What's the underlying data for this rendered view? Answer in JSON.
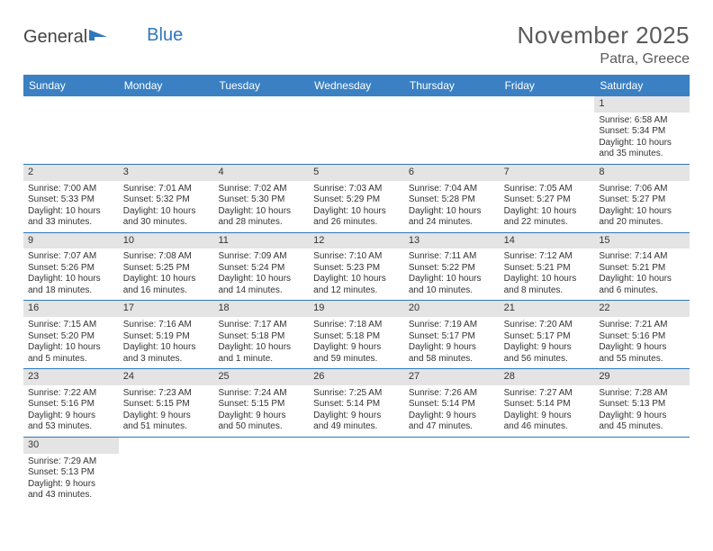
{
  "logo": {
    "text_a": "General",
    "text_b": "Blue"
  },
  "title": "November 2025",
  "location": "Patra, Greece",
  "colors": {
    "header_bg": "#3a80c3",
    "row_divider": "#2f77bb",
    "daynum_bg": "#e4e4e4",
    "text": "#333333",
    "title_text": "#5a5a5a"
  },
  "weekdays": [
    "Sunday",
    "Monday",
    "Tuesday",
    "Wednesday",
    "Thursday",
    "Friday",
    "Saturday"
  ],
  "weeks": [
    [
      null,
      null,
      null,
      null,
      null,
      null,
      {
        "n": "1",
        "sunrise": "Sunrise: 6:58 AM",
        "sunset": "Sunset: 5:34 PM",
        "day1": "Daylight: 10 hours",
        "day2": "and 35 minutes."
      }
    ],
    [
      {
        "n": "2",
        "sunrise": "Sunrise: 7:00 AM",
        "sunset": "Sunset: 5:33 PM",
        "day1": "Daylight: 10 hours",
        "day2": "and 33 minutes."
      },
      {
        "n": "3",
        "sunrise": "Sunrise: 7:01 AM",
        "sunset": "Sunset: 5:32 PM",
        "day1": "Daylight: 10 hours",
        "day2": "and 30 minutes."
      },
      {
        "n": "4",
        "sunrise": "Sunrise: 7:02 AM",
        "sunset": "Sunset: 5:30 PM",
        "day1": "Daylight: 10 hours",
        "day2": "and 28 minutes."
      },
      {
        "n": "5",
        "sunrise": "Sunrise: 7:03 AM",
        "sunset": "Sunset: 5:29 PM",
        "day1": "Daylight: 10 hours",
        "day2": "and 26 minutes."
      },
      {
        "n": "6",
        "sunrise": "Sunrise: 7:04 AM",
        "sunset": "Sunset: 5:28 PM",
        "day1": "Daylight: 10 hours",
        "day2": "and 24 minutes."
      },
      {
        "n": "7",
        "sunrise": "Sunrise: 7:05 AM",
        "sunset": "Sunset: 5:27 PM",
        "day1": "Daylight: 10 hours",
        "day2": "and 22 minutes."
      },
      {
        "n": "8",
        "sunrise": "Sunrise: 7:06 AM",
        "sunset": "Sunset: 5:27 PM",
        "day1": "Daylight: 10 hours",
        "day2": "and 20 minutes."
      }
    ],
    [
      {
        "n": "9",
        "sunrise": "Sunrise: 7:07 AM",
        "sunset": "Sunset: 5:26 PM",
        "day1": "Daylight: 10 hours",
        "day2": "and 18 minutes."
      },
      {
        "n": "10",
        "sunrise": "Sunrise: 7:08 AM",
        "sunset": "Sunset: 5:25 PM",
        "day1": "Daylight: 10 hours",
        "day2": "and 16 minutes."
      },
      {
        "n": "11",
        "sunrise": "Sunrise: 7:09 AM",
        "sunset": "Sunset: 5:24 PM",
        "day1": "Daylight: 10 hours",
        "day2": "and 14 minutes."
      },
      {
        "n": "12",
        "sunrise": "Sunrise: 7:10 AM",
        "sunset": "Sunset: 5:23 PM",
        "day1": "Daylight: 10 hours",
        "day2": "and 12 minutes."
      },
      {
        "n": "13",
        "sunrise": "Sunrise: 7:11 AM",
        "sunset": "Sunset: 5:22 PM",
        "day1": "Daylight: 10 hours",
        "day2": "and 10 minutes."
      },
      {
        "n": "14",
        "sunrise": "Sunrise: 7:12 AM",
        "sunset": "Sunset: 5:21 PM",
        "day1": "Daylight: 10 hours",
        "day2": "and 8 minutes."
      },
      {
        "n": "15",
        "sunrise": "Sunrise: 7:14 AM",
        "sunset": "Sunset: 5:21 PM",
        "day1": "Daylight: 10 hours",
        "day2": "and 6 minutes."
      }
    ],
    [
      {
        "n": "16",
        "sunrise": "Sunrise: 7:15 AM",
        "sunset": "Sunset: 5:20 PM",
        "day1": "Daylight: 10 hours",
        "day2": "and 5 minutes."
      },
      {
        "n": "17",
        "sunrise": "Sunrise: 7:16 AM",
        "sunset": "Sunset: 5:19 PM",
        "day1": "Daylight: 10 hours",
        "day2": "and 3 minutes."
      },
      {
        "n": "18",
        "sunrise": "Sunrise: 7:17 AM",
        "sunset": "Sunset: 5:18 PM",
        "day1": "Daylight: 10 hours",
        "day2": "and 1 minute."
      },
      {
        "n": "19",
        "sunrise": "Sunrise: 7:18 AM",
        "sunset": "Sunset: 5:18 PM",
        "day1": "Daylight: 9 hours",
        "day2": "and 59 minutes."
      },
      {
        "n": "20",
        "sunrise": "Sunrise: 7:19 AM",
        "sunset": "Sunset: 5:17 PM",
        "day1": "Daylight: 9 hours",
        "day2": "and 58 minutes."
      },
      {
        "n": "21",
        "sunrise": "Sunrise: 7:20 AM",
        "sunset": "Sunset: 5:17 PM",
        "day1": "Daylight: 9 hours",
        "day2": "and 56 minutes."
      },
      {
        "n": "22",
        "sunrise": "Sunrise: 7:21 AM",
        "sunset": "Sunset: 5:16 PM",
        "day1": "Daylight: 9 hours",
        "day2": "and 55 minutes."
      }
    ],
    [
      {
        "n": "23",
        "sunrise": "Sunrise: 7:22 AM",
        "sunset": "Sunset: 5:16 PM",
        "day1": "Daylight: 9 hours",
        "day2": "and 53 minutes."
      },
      {
        "n": "24",
        "sunrise": "Sunrise: 7:23 AM",
        "sunset": "Sunset: 5:15 PM",
        "day1": "Daylight: 9 hours",
        "day2": "and 51 minutes."
      },
      {
        "n": "25",
        "sunrise": "Sunrise: 7:24 AM",
        "sunset": "Sunset: 5:15 PM",
        "day1": "Daylight: 9 hours",
        "day2": "and 50 minutes."
      },
      {
        "n": "26",
        "sunrise": "Sunrise: 7:25 AM",
        "sunset": "Sunset: 5:14 PM",
        "day1": "Daylight: 9 hours",
        "day2": "and 49 minutes."
      },
      {
        "n": "27",
        "sunrise": "Sunrise: 7:26 AM",
        "sunset": "Sunset: 5:14 PM",
        "day1": "Daylight: 9 hours",
        "day2": "and 47 minutes."
      },
      {
        "n": "28",
        "sunrise": "Sunrise: 7:27 AM",
        "sunset": "Sunset: 5:14 PM",
        "day1": "Daylight: 9 hours",
        "day2": "and 46 minutes."
      },
      {
        "n": "29",
        "sunrise": "Sunrise: 7:28 AM",
        "sunset": "Sunset: 5:13 PM",
        "day1": "Daylight: 9 hours",
        "day2": "and 45 minutes."
      }
    ],
    [
      {
        "n": "30",
        "sunrise": "Sunrise: 7:29 AM",
        "sunset": "Sunset: 5:13 PM",
        "day1": "Daylight: 9 hours",
        "day2": "and 43 minutes."
      },
      null,
      null,
      null,
      null,
      null,
      null
    ]
  ]
}
